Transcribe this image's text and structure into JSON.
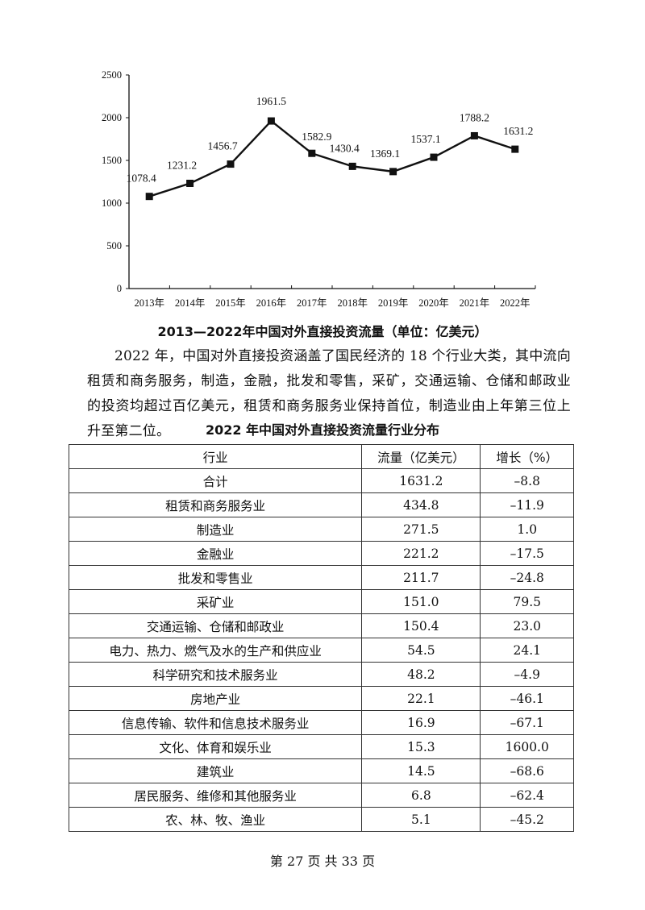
{
  "chart_data": {
    "type": "line",
    "title": "2013—2022年中国对外直接投资流量（单位：亿美元）",
    "xlabel": "",
    "ylabel": "",
    "categories": [
      "2013年",
      "2014年",
      "2015年",
      "2016年",
      "2017年",
      "2018年",
      "2019年",
      "2020年",
      "2021年",
      "2022年"
    ],
    "series": [
      {
        "name": "对外直接投资流量",
        "values": [
          1078.4,
          1231.2,
          1456.7,
          1961.5,
          1582.9,
          1430.4,
          1369.1,
          1537.1,
          1788.2,
          1631.2
        ]
      }
    ],
    "data_labels": [
      "1078.4",
      "1231.2",
      "1456.7",
      "1961.5",
      "1582.9",
      "1430.4",
      "1369.1",
      "1537.1",
      "1788.2",
      "1631.2"
    ],
    "ylim": [
      0,
      2500
    ],
    "yticks": [
      0,
      500,
      1000,
      1500,
      2000,
      2500
    ],
    "grid": false,
    "legend": "none",
    "marker": "square",
    "line_color": "#111111"
  },
  "chart_caption": "2013—2022年中国对外直接投资流量（单位：亿美元）",
  "paragraph": "2022 年，中国对外直接投资涵盖了国民经济的 18 个行业大类，其中流向租赁和商务服务，制造，金融，批发和零售，采矿，交通运输、仓储和邮政业的投资均超过百亿美元，租赁和商务服务业保持首位，制造业由上年第三位上升至第二位。",
  "table": {
    "title": "2022 年中国对外直接投资流量行业分布",
    "headers": [
      "行业",
      "流量（亿美元）",
      "增长（%）"
    ],
    "rows": [
      [
        "合计",
        "1631.2",
        "–8.8"
      ],
      [
        "租赁和商务服务业",
        "434.8",
        "–11.9"
      ],
      [
        "制造业",
        "271.5",
        "1.0"
      ],
      [
        "金融业",
        "221.2",
        "–17.5"
      ],
      [
        "批发和零售业",
        "211.7",
        "–24.8"
      ],
      [
        "采矿业",
        "151.0",
        "79.5"
      ],
      [
        "交通运输、仓储和邮政业",
        "150.4",
        "23.0"
      ],
      [
        "电力、热力、燃气及水的生产和供应业",
        "54.5",
        "24.1"
      ],
      [
        "科学研究和技术服务业",
        "48.2",
        "–4.9"
      ],
      [
        "房地产业",
        "22.1",
        "–46.1"
      ],
      [
        "信息传输、软件和信息技术服务业",
        "16.9",
        "–67.1"
      ],
      [
        "文化、体育和娱乐业",
        "15.3",
        "1600.0"
      ],
      [
        "建筑业",
        "14.5",
        "–68.6"
      ],
      [
        "居民服务、维修和其他服务业",
        "6.8",
        "–62.4"
      ],
      [
        "农、林、牧、渔业",
        "5.1",
        "–45.2"
      ]
    ]
  },
  "footer": "第 27 页 共 33 页",
  "footer_overlay": "99"
}
